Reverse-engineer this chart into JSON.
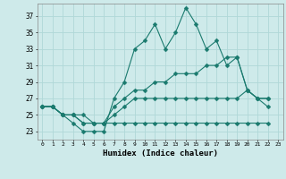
{
  "xlabel": "Humidex (Indice chaleur)",
  "background_color": "#ceeaea",
  "grid_color": "#b0d8d8",
  "line_color": "#1a7a6e",
  "xlim": [
    -0.5,
    23.5
  ],
  "ylim": [
    22.0,
    38.5
  ],
  "xticks": [
    0,
    1,
    2,
    3,
    4,
    5,
    6,
    7,
    8,
    9,
    10,
    11,
    12,
    13,
    14,
    15,
    16,
    17,
    18,
    19,
    20,
    21,
    22,
    23
  ],
  "yticks": [
    23,
    25,
    27,
    29,
    31,
    33,
    35,
    37
  ],
  "series": [
    [
      26,
      26,
      25,
      24,
      23,
      23,
      23,
      27,
      29,
      33,
      34,
      36,
      33,
      35,
      38,
      36,
      33,
      34,
      31,
      32,
      28,
      27,
      26,
      null
    ],
    [
      26,
      26,
      25,
      25,
      24,
      24,
      24,
      26,
      27,
      28,
      28,
      29,
      29,
      30,
      30,
      30,
      31,
      31,
      32,
      32,
      28,
      27,
      27,
      null
    ],
    [
      26,
      26,
      25,
      25,
      25,
      24,
      24,
      25,
      26,
      27,
      27,
      27,
      27,
      27,
      27,
      27,
      27,
      27,
      27,
      27,
      28,
      27,
      27,
      null
    ],
    [
      26,
      26,
      25,
      25,
      24,
      24,
      24,
      24,
      24,
      24,
      24,
      24,
      24,
      24,
      24,
      24,
      24,
      24,
      24,
      24,
      24,
      24,
      24,
      null
    ]
  ]
}
